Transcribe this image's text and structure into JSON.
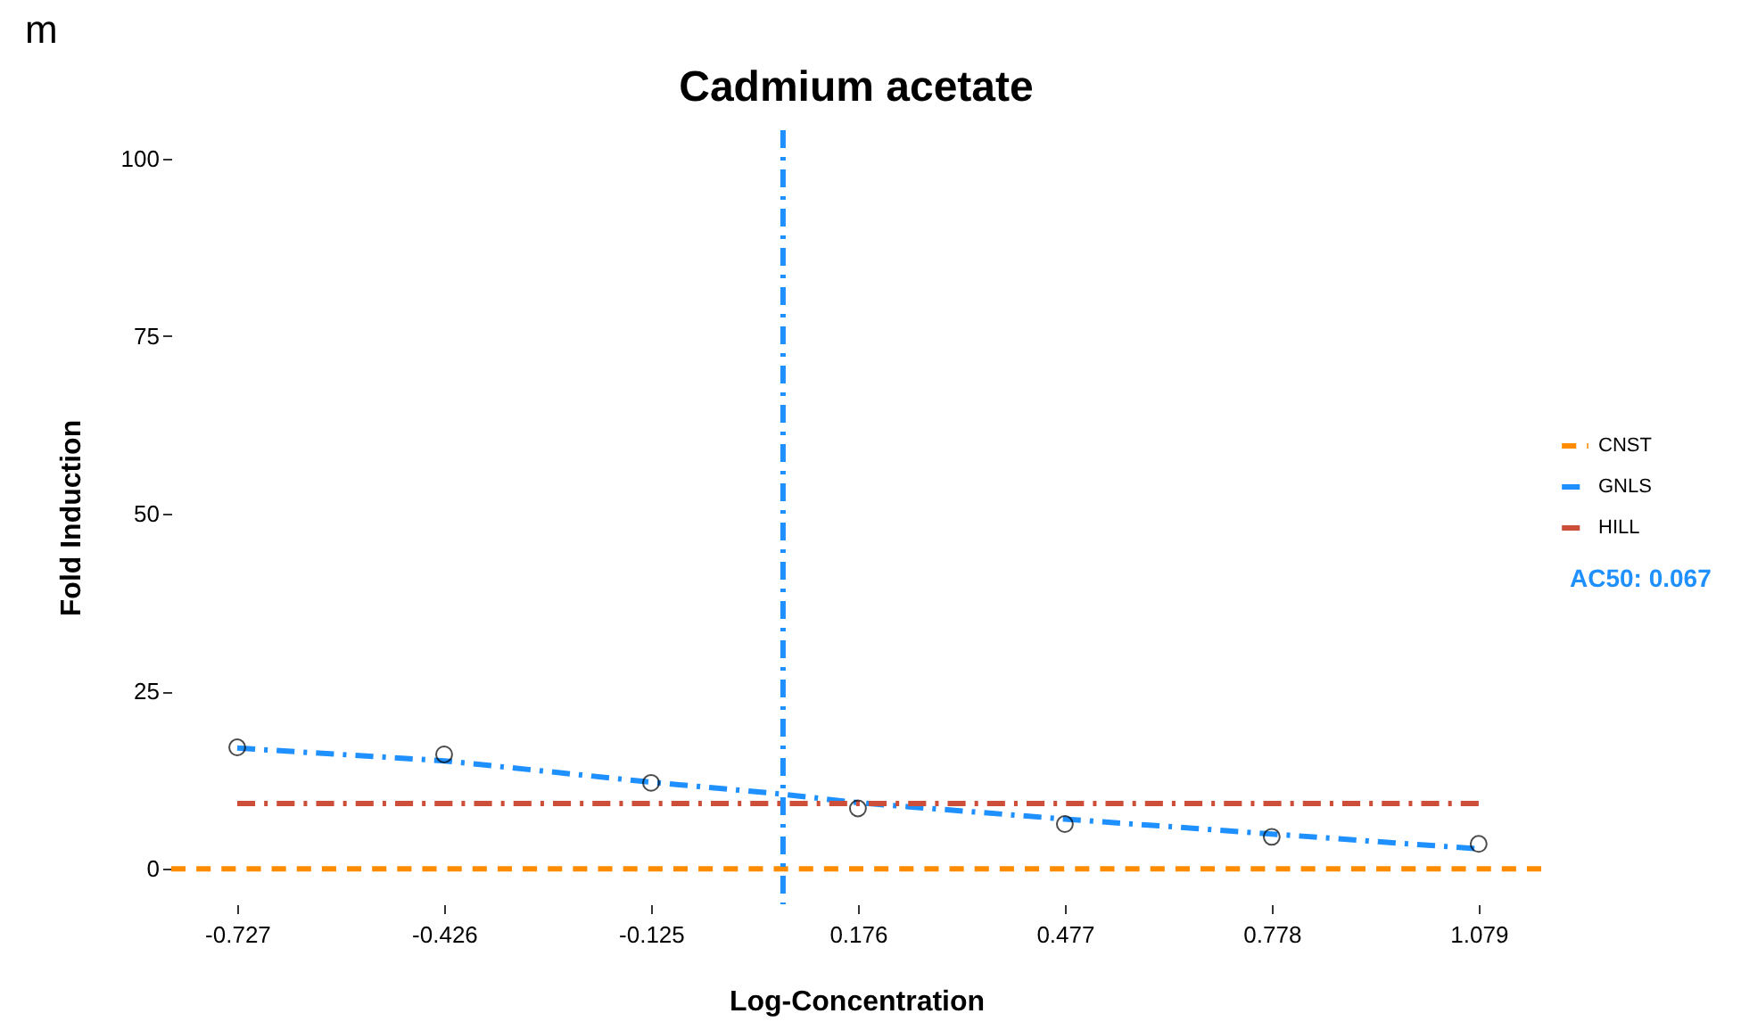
{
  "chart_data": {
    "type": "line",
    "title": "Cadmium acetate",
    "xlabel": "Log-Concentration",
    "ylabel": "Fold Induction",
    "annotations": [
      "m"
    ],
    "xlim": [
      -0.823,
      1.17
    ],
    "ylim": [
      -5,
      104
    ],
    "xticks": [
      -0.727,
      -0.426,
      -0.125,
      0.176,
      0.477,
      0.778,
      1.079
    ],
    "yticks": [
      0,
      25,
      50,
      75,
      100
    ],
    "series": [
      {
        "name": "CNST",
        "type": "line",
        "color": "#ff8c00",
        "line_style": "dashed",
        "x": [
          -0.823,
          1.17
        ],
        "values": [
          0,
          0
        ]
      },
      {
        "name": "GNLS",
        "type": "line",
        "color": "#1e90ff",
        "line_style": "dashdot",
        "x": [
          -0.727,
          -0.426,
          -0.125,
          0.067,
          0.176,
          0.477,
          0.778,
          1.079
        ],
        "values": [
          17,
          15.2,
          12.2,
          10.5,
          9.3,
          7,
          4.9,
          2.8
        ]
      },
      {
        "name": "HILL",
        "type": "line",
        "color": "#cd4f39",
        "line_style": "dashdot",
        "x": [
          -0.727,
          1.079
        ],
        "values": [
          9.2,
          9.2
        ]
      },
      {
        "type": "scatter",
        "color": "#000000",
        "marker": "circle",
        "x": [
          -0.727,
          -0.426,
          -0.125,
          0.176,
          0.477,
          0.778,
          1.079
        ],
        "values": [
          17.1,
          16.1,
          12.1,
          8.5,
          6.3,
          4.5,
          3.5
        ]
      }
    ],
    "ref_lines": [
      {
        "axis": "x",
        "value": 0.067,
        "label": "AC50: 0.067",
        "color": "#1e90ff",
        "line_style": "dashdot"
      }
    ],
    "legend": "right",
    "grid": false
  }
}
